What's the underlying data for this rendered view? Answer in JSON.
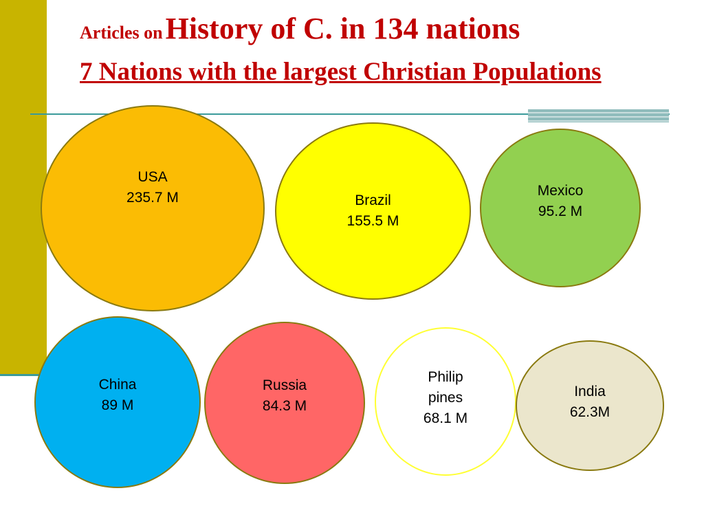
{
  "title": {
    "prefix": "Articles on",
    "main": "History of C. in 134 nations",
    "subtitle": "7 Nations with the largest Christian Populations"
  },
  "bubbles": [
    {
      "name": "USA",
      "value": "235.7 M",
      "population_millions": 235.7,
      "color": "#fbbc04"
    },
    {
      "name": "Brazil",
      "value": "155.5 M",
      "population_millions": 155.5,
      "color": "#ffff00"
    },
    {
      "name": "Mexico",
      "value": "95.2 M",
      "population_millions": 95.2,
      "color": "#92d050"
    },
    {
      "name": "China",
      "value": "89 M",
      "population_millions": 89,
      "color": "#00b0f0"
    },
    {
      "name": "Russia",
      "value": "84.3 M",
      "population_millions": 84.3,
      "color": "#ff6666"
    },
    {
      "name_line1": "Philip",
      "name_line2": "pines",
      "value": "68.1 M",
      "population_millions": 68.1,
      "color": "#ffffff"
    },
    {
      "name": "India",
      "value": "62.3M",
      "population_millions": 62.3,
      "color": "#ebe6cc"
    }
  ]
}
